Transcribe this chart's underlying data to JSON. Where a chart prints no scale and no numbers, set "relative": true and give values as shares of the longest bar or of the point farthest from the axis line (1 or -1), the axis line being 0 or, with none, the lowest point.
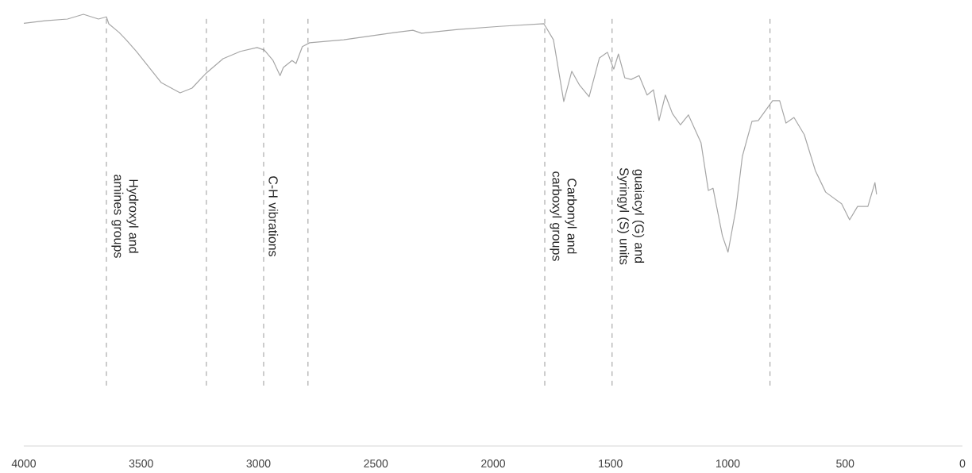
{
  "chart_data": {
    "type": "line",
    "relative": true,
    "color": "#a6a6a6",
    "marker": "none",
    "x": [
      4000,
      3909,
      3814,
      3746,
      3682,
      3648,
      3638,
      3594,
      3564,
      3520,
      3415,
      3334,
      3283,
      3226,
      3151,
      3077,
      3006,
      2975,
      2938,
      2908,
      2894,
      2857,
      2840,
      2813,
      2782,
      2637,
      2417,
      2342,
      2305,
      2150,
      1973,
      1784,
      1777,
      1743,
      1699,
      1665,
      1632,
      1591,
      1547,
      1513,
      1486,
      1466,
      1439,
      1412,
      1378,
      1344,
      1317,
      1293,
      1266,
      1236,
      1202,
      1168,
      1114,
      1083,
      1063,
      1023,
      999,
      965,
      938,
      897,
      870,
      809,
      779,
      752,
      718,
      674,
      627,
      583,
      515,
      481,
      447,
      403,
      373,
      366
    ],
    "values": [
      0.979,
      0.985,
      0.989,
      1,
      0.989,
      0.994,
      0.978,
      0.958,
      0.941,
      0.914,
      0.842,
      0.818,
      0.829,
      0.862,
      0.897,
      0.914,
      0.923,
      0.917,
      0.893,
      0.858,
      0.877,
      0.893,
      0.886,
      0.925,
      0.934,
      0.941,
      0.958,
      0.963,
      0.956,
      0.965,
      0.972,
      0.978,
      0.972,
      0.941,
      0.798,
      0.868,
      0.836,
      0.809,
      0.899,
      0.912,
      0.873,
      0.908,
      0.853,
      0.849,
      0.858,
      0.813,
      0.825,
      0.754,
      0.813,
      0.77,
      0.744,
      0.767,
      0.702,
      0.592,
      0.597,
      0.487,
      0.449,
      0.55,
      0.671,
      0.752,
      0.754,
      0.8,
      0.8,
      0.748,
      0.761,
      0.721,
      0.638,
      0.588,
      0.561,
      0.524,
      0.555,
      0.555,
      0.61,
      0.583
    ],
    "xlim": [
      4000,
      0
    ],
    "xticks": [
      4000,
      3500,
      3000,
      2500,
      2000,
      1500,
      1000,
      500,
      0
    ],
    "ref_lines": [
      {
        "axis": "x",
        "value": 3648,
        "label": "Hydroxyl and amines groups",
        "color": "#808080",
        "line_style": "dashed"
      },
      {
        "axis": "x",
        "value": 3222,
        "color": "#808080",
        "line_style": "dashed"
      },
      {
        "axis": "x",
        "value": 2978,
        "label": "C-H vibrations",
        "color": "#808080",
        "line_style": "dashed"
      },
      {
        "axis": "x",
        "value": 2789,
        "color": "#808080",
        "line_style": "dashed"
      },
      {
        "axis": "x",
        "value": 1780,
        "label": "Carbonyl and carboxyl groups",
        "color": "#808080",
        "line_style": "dashed"
      },
      {
        "axis": "x",
        "value": 1493,
        "label": "guaiacyl (G) and Syringyl (S) units",
        "color": "#808080",
        "line_style": "dashed"
      },
      {
        "axis": "x",
        "value": 820,
        "color": "#808080",
        "line_style": "dashed"
      }
    ]
  }
}
